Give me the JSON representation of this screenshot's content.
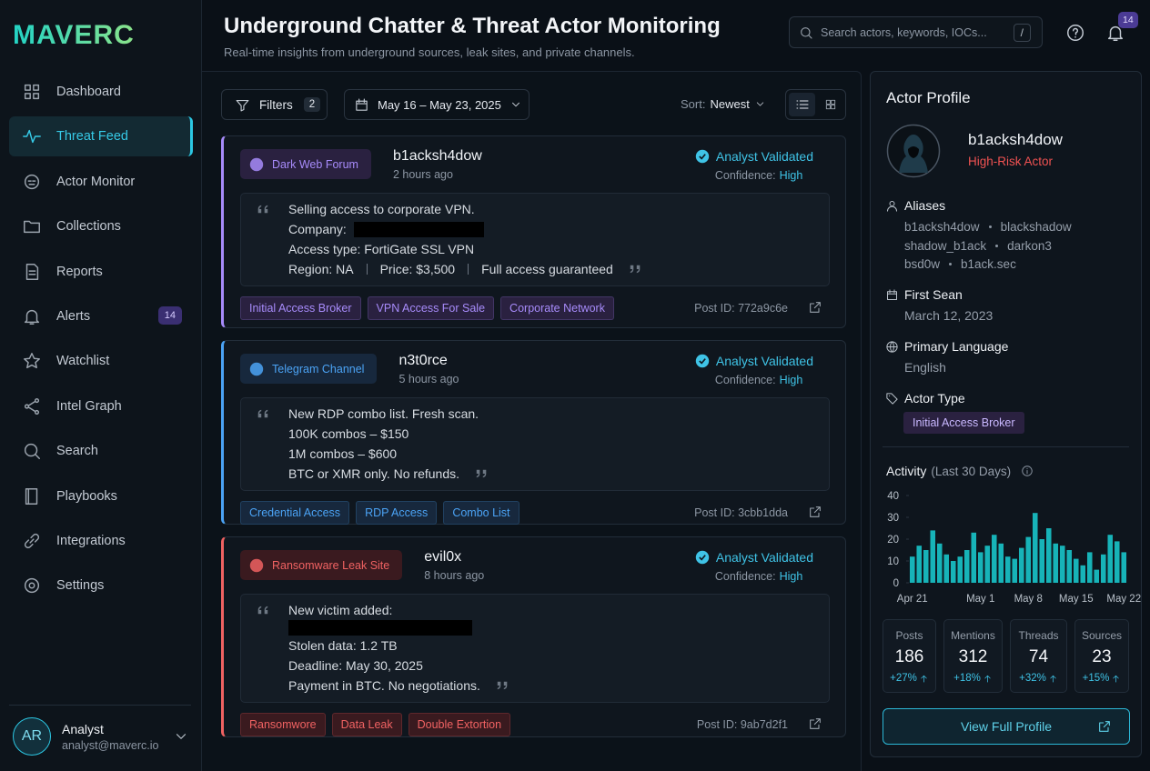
{
  "brand": {
    "name": "MAVERC"
  },
  "header": {
    "title": "Underground Chatter & Threat Actor Monitoring",
    "subtitle": "Real-time insights from underground sources, leak sites, and private channels.",
    "search_placeholder": "Search actors, keywords, IOCs...",
    "search_shortcut": "/",
    "notification_count": 14
  },
  "nav": {
    "active": 1,
    "items": [
      {
        "label": "Dashboard"
      },
      {
        "label": "Threat Feed"
      },
      {
        "label": "Actor Monitor"
      },
      {
        "label": "Collections"
      },
      {
        "label": "Reports"
      },
      {
        "label": "Alerts",
        "badge": 14
      },
      {
        "label": "Watchlist"
      },
      {
        "label": "Intel Graph"
      },
      {
        "label": "Search"
      },
      {
        "label": "Playbooks"
      },
      {
        "label": "Integrations"
      },
      {
        "label": "Settings"
      }
    ]
  },
  "user": {
    "initials": "AR",
    "name": "Analyst",
    "email": "analyst@maverc.io"
  },
  "toolbar": {
    "filters": "Filters",
    "filter_count": 2,
    "date_range": "May 16 – May 23, 2025",
    "sort_label": "Sort:",
    "sort_value": "Newest"
  },
  "posts": [
    {
      "source": "Dark Web Forum",
      "color": "#a78bfa",
      "actor": "b1acksh4dow",
      "time": "2 hours ago",
      "status": "Analyst Validated",
      "confidence_label": "Confidence:",
      "confidence": "High",
      "lines": [
        {
          "text": [
            "Selling access to corporate VPN."
          ]
        },
        {
          "text": [
            "Company:"
          ],
          "redacted": true
        },
        {
          "text": [
            "Access type: FortiGate SSL VPN"
          ]
        },
        {
          "text": [
            "Region: NA",
            "Price: $3,500",
            "Full access guaranteed"
          ]
        }
      ],
      "tags": [
        "Initial Access Broker",
        "VPN Access For Sale",
        "Corporate Network"
      ],
      "post_id": "Post ID: 772a9c6e"
    },
    {
      "source": "Telegram Channel",
      "color": "#4ba3f5",
      "actor": "n3t0rce",
      "time": "5 hours ago",
      "status": "Analyst Validated",
      "confidence_label": "Confidence:",
      "confidence": "High",
      "lines": [
        {
          "text": [
            "New RDP combo list. Fresh scan."
          ]
        },
        {
          "text": [
            "100K combos – $150"
          ]
        },
        {
          "text": [
            "1M combos – $600"
          ]
        },
        {
          "text": [
            "BTC or XMR only. No refunds."
          ]
        }
      ],
      "tags": [
        "Credential Access",
        "RDP Access",
        "Combo List"
      ],
      "post_id": "Post ID: 3cbb1dda"
    },
    {
      "source": "Ransomware Leak Site",
      "color": "#f06262",
      "actor": "evil0x",
      "time": "8 hours ago",
      "status": "Analyst Validated",
      "confidence_label": "Confidence:",
      "confidence": "High",
      "lines": [
        {
          "text": [
            "New victim added:"
          ]
        },
        {
          "redacted": true
        },
        {
          "text": [
            "Stolen data: 1.2 TB"
          ]
        },
        {
          "text": [
            "Deadline: May 30, 2025"
          ]
        },
        {
          "text": [
            "Payment in BTC. No negotiations."
          ]
        }
      ],
      "tags": [
        "Ransomwore",
        "Data Leak",
        "Double Extortion"
      ],
      "post_id": "Post ID: 9ab7d2f1"
    }
  ],
  "profile": {
    "title": "Actor Profile",
    "name": "b1acksh4dow",
    "risk": "High-Risk Actor",
    "aliases_label": "Aliases",
    "aliases": [
      "b1acksh4dow",
      "blackshadow",
      "shadow_b1ack",
      "darkon3",
      "bsd0w",
      "b1ack.sec"
    ],
    "first_seen_label": "First Sean",
    "first_seen": "March 12, 2023",
    "language_label": "Primary Language",
    "language": "English",
    "type_label": "Actor Type",
    "type": "Initial Access Broker",
    "activity": {
      "title": "Activity",
      "subtitle": "(Last 30 Days)",
      "chart": {
        "type": "bar",
        "color": "#17b3b8",
        "categories": [
          "Apr 21",
          null,
          null,
          null,
          null,
          null,
          null,
          null,
          null,
          null,
          "May 1",
          null,
          null,
          null,
          null,
          null,
          null,
          "May 8",
          null,
          null,
          null,
          null,
          null,
          null,
          "May 15",
          null,
          null,
          null,
          null,
          null,
          null,
          "May 22"
        ],
        "values": [
          12,
          17,
          15,
          24,
          18,
          13,
          10,
          12,
          15,
          23,
          14,
          17,
          22,
          18,
          12,
          11,
          16,
          21,
          32,
          20,
          25,
          18,
          17,
          15,
          11,
          8,
          14,
          6,
          13,
          22,
          19,
          14
        ],
        "ylim": [
          0,
          40
        ],
        "yticks": [
          0,
          10,
          20,
          30,
          40
        ]
      }
    },
    "stats": [
      {
        "label": "Posts",
        "value": 186,
        "change": "+27%"
      },
      {
        "label": "Mentions",
        "value": 312,
        "change": "+18%"
      },
      {
        "label": "Threads",
        "value": 74,
        "change": "+32%"
      },
      {
        "label": "Sources",
        "value": 23,
        "change": "+15%"
      }
    ],
    "button": "View Full Profile"
  }
}
